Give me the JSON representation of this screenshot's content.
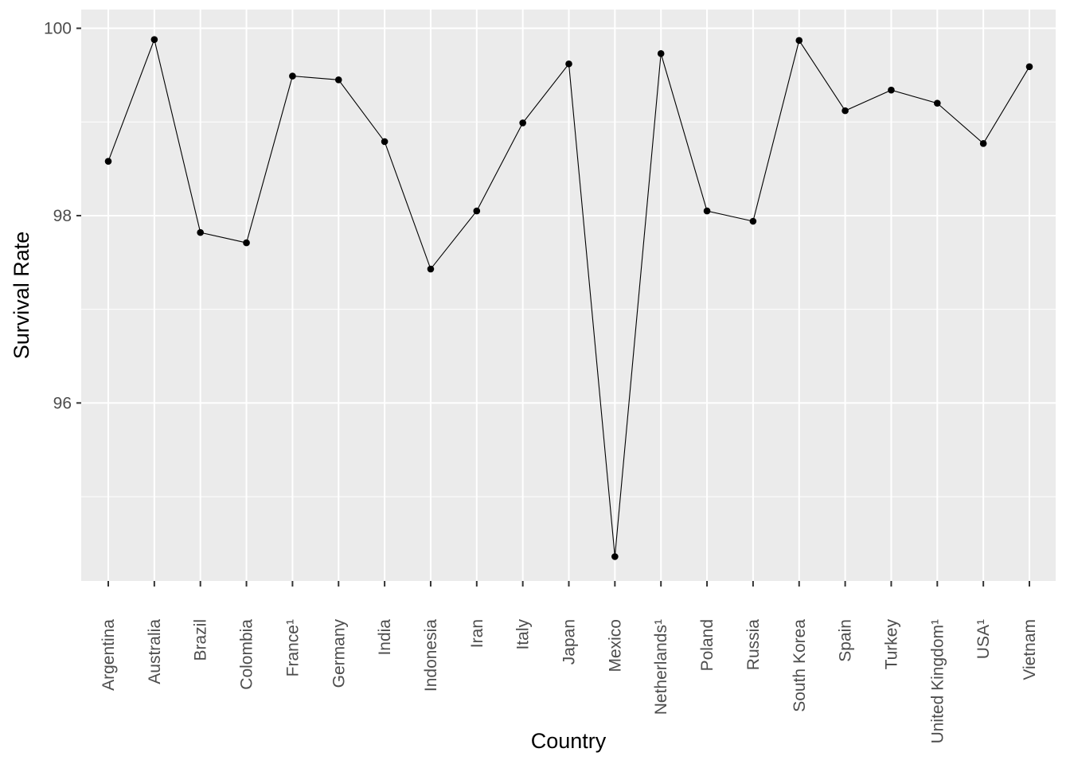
{
  "chart_data": {
    "type": "line",
    "title": "",
    "xlabel": "Country",
    "ylabel": "Survival Rate",
    "ylim": [
      94.1,
      100.2
    ],
    "yticks": [
      96,
      98,
      100
    ],
    "categories": [
      "Argentina",
      "Australia",
      "Brazil",
      "Colombia",
      "France¹",
      "Germany",
      "India",
      "Indonesia",
      "Iran",
      "Italy",
      "Japan",
      "Mexico",
      "Netherlands¹",
      "Poland",
      "Russia",
      "South Korea",
      "Spain",
      "Turkey",
      "United Kingdom¹",
      "USA¹",
      "Vietnam"
    ],
    "series": [
      {
        "values": [
          98.58,
          99.88,
          97.82,
          97.71,
          99.49,
          99.45,
          98.79,
          97.43,
          98.05,
          98.99,
          99.62,
          94.36,
          99.73,
          98.05,
          97.94,
          99.87,
          99.12,
          99.34,
          99.2,
          98.77,
          99.59
        ]
      }
    ],
    "grid": true,
    "panel_background": "#ebebeb",
    "gridline_color": "#ffffff",
    "line_color": "#000000",
    "point_color": "#000000"
  }
}
